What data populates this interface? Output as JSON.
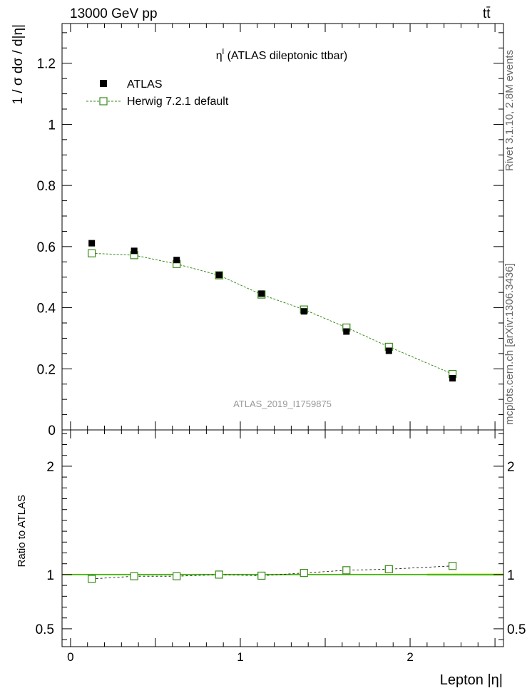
{
  "header": {
    "left": "13000 GeV pp",
    "right": "tt̄"
  },
  "side_text": {
    "rivet": "Rivet 3.1.10, 2.8M events",
    "mcplots": "mcplots.cern.ch [arXiv:1306.3436]"
  },
  "chart_data": [
    {
      "type": "scatter",
      "title": "η^l (ATLAS dileptonic ttbar)",
      "title_main": "η",
      "title_sup": "l",
      "title_rest": " (ATLAS dileptonic ttbar)",
      "ylabel": "1 / σ  dσ / d|η|",
      "watermark": "ATLAS_2019_I1759875",
      "xlim": [
        -0.05,
        2.55
      ],
      "ylim": [
        0,
        1.33
      ],
      "yticks": [
        0,
        0.2,
        0.4,
        0.6,
        0.8,
        1,
        1.2
      ],
      "ytick_labels": [
        "0",
        "0.2",
        "0.4",
        "0.6",
        "0.8",
        "1",
        "1.2"
      ],
      "grid": false,
      "legend_position": "top-left",
      "legend": [
        "ATLAS",
        "Herwig 7.2.1 default"
      ],
      "series": [
        {
          "name": "ATLAS",
          "color": "#000000",
          "marker": "filled-square",
          "x": [
            0.125,
            0.375,
            0.625,
            0.875,
            1.125,
            1.375,
            1.625,
            1.875,
            2.25
          ],
          "y": [
            0.611,
            0.586,
            0.556,
            0.507,
            0.446,
            0.388,
            0.322,
            0.259,
            0.169
          ]
        },
        {
          "name": "Herwig 7.2.1 default",
          "color": "#3a8a1a",
          "marker": "open-square",
          "line": "dashed",
          "x": [
            0.125,
            0.375,
            0.625,
            0.875,
            1.125,
            1.375,
            1.625,
            1.875,
            2.25
          ],
          "y": [
            0.578,
            0.572,
            0.543,
            0.506,
            0.443,
            0.394,
            0.335,
            0.272,
            0.183
          ]
        }
      ]
    },
    {
      "type": "scatter",
      "ylabel": "Ratio to ATLAS",
      "xlabel": "Lepton |η|",
      "xlim": [
        -0.05,
        2.55
      ],
      "ylim": [
        0.335,
        2.335
      ],
      "xticks": [
        0,
        1,
        2
      ],
      "xtick_labels": [
        "0",
        "1",
        "2"
      ],
      "yticks": [
        0.5,
        1,
        2
      ],
      "ytick_labels": [
        "0.5",
        "1",
        "2"
      ],
      "reference_line": 1,
      "reference_band_color": "#ccee66",
      "series": [
        {
          "name": "Herwig 7.2.1 default",
          "color": "#3a8a1a",
          "marker": "open-square",
          "line": "dashed",
          "x": [
            0.125,
            0.375,
            0.625,
            0.875,
            1.125,
            1.375,
            1.625,
            1.875,
            2.25
          ],
          "y": [
            0.96,
            0.985,
            0.985,
            1.0,
            0.99,
            1.015,
            1.04,
            1.05,
            1.08
          ]
        }
      ]
    }
  ]
}
